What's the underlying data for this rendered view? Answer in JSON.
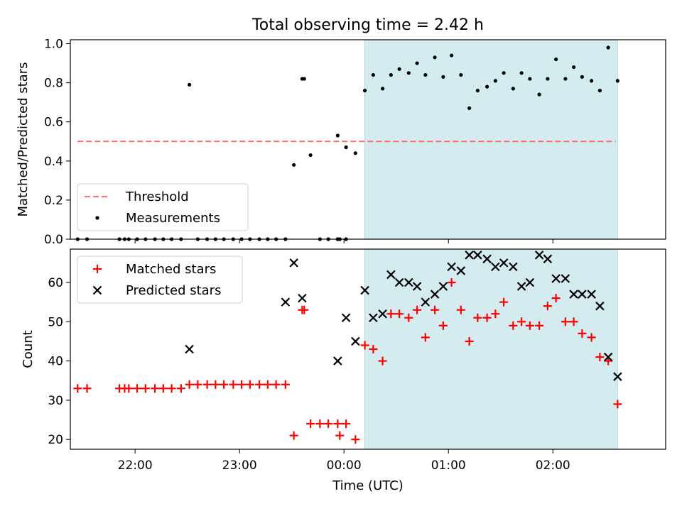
{
  "chart_data": {
    "type": "scatter",
    "title": "Total observing time = 2.42 h",
    "xlabel": "Time (UTC)",
    "x_range_hours": [
      -2.62,
      3.08
    ],
    "x_tick_hours": [
      -2,
      -1,
      0,
      1,
      2
    ],
    "xtick_labels": [
      "22:00",
      "23:00",
      "00:00",
      "01:00",
      "02:00"
    ],
    "shaded_region_hours": [
      0.2,
      2.62
    ],
    "shade_color": "#d4ebf0",
    "panels": [
      {
        "ylabel": "Matched/Predicted stars",
        "ylim": [
          0,
          1.02
        ],
        "ytick_values": [
          0,
          0.2,
          0.4,
          0.6,
          0.8,
          1.0
        ],
        "ytick_labels": [
          "0.0",
          "0.2",
          "0.4",
          "0.6",
          "0.8",
          "1.0"
        ],
        "threshold": {
          "name": "Threshold",
          "value": 0.5,
          "x_start": -2.55,
          "x_end": 2.6,
          "color": "#ff6f6f"
        },
        "series": [
          {
            "name": "Measurements",
            "marker": "dot",
            "color": "#000000",
            "points": [
              [
                -2.55,
                0
              ],
              [
                -2.46,
                0
              ],
              [
                -2.15,
                0
              ],
              [
                -2.1,
                0
              ],
              [
                -2.06,
                0
              ],
              [
                -1.98,
                0
              ],
              [
                -1.9,
                0
              ],
              [
                -1.81,
                0
              ],
              [
                -1.73,
                0
              ],
              [
                -1.65,
                0
              ],
              [
                -1.56,
                0
              ],
              [
                -1.48,
                0.79
              ],
              [
                -1.4,
                0
              ],
              [
                -1.31,
                0
              ],
              [
                -1.23,
                0
              ],
              [
                -1.15,
                0
              ],
              [
                -1.06,
                0
              ],
              [
                -0.98,
                0
              ],
              [
                -0.9,
                0
              ],
              [
                -0.81,
                0
              ],
              [
                -0.73,
                0
              ],
              [
                -0.65,
                0
              ],
              [
                -0.56,
                0
              ],
              [
                -0.48,
                0.38
              ],
              [
                -0.4,
                0.82
              ],
              [
                -0.38,
                0.82
              ],
              [
                -0.32,
                0.43
              ],
              [
                -0.23,
                0
              ],
              [
                -0.15,
                0
              ],
              [
                -0.06,
                0
              ],
              [
                -0.04,
                0
              ],
              [
                -0.06,
                0
              ],
              [
                0.02,
                0
              ],
              [
                -0.06,
                0.53
              ],
              [
                0.02,
                0.47
              ],
              [
                0.11,
                0.44
              ],
              [
                0.2,
                0.76
              ],
              [
                0.28,
                0.84
              ],
              [
                0.37,
                0.77
              ],
              [
                0.45,
                0.84
              ],
              [
                0.53,
                0.87
              ],
              [
                0.62,
                0.85
              ],
              [
                0.7,
                0.9
              ],
              [
                0.78,
                0.84
              ],
              [
                0.87,
                0.93
              ],
              [
                0.95,
                0.83
              ],
              [
                1.03,
                0.94
              ],
              [
                1.12,
                0.84
              ],
              [
                1.2,
                0.67
              ],
              [
                1.28,
                0.76
              ],
              [
                1.37,
                0.78
              ],
              [
                1.45,
                0.81
              ],
              [
                1.53,
                0.85
              ],
              [
                1.62,
                0.77
              ],
              [
                1.7,
                0.85
              ],
              [
                1.78,
                0.82
              ],
              [
                1.87,
                0.74
              ],
              [
                1.95,
                0.82
              ],
              [
                2.03,
                0.92
              ],
              [
                2.12,
                0.82
              ],
              [
                2.2,
                0.88
              ],
              [
                2.28,
                0.83
              ],
              [
                2.37,
                0.81
              ],
              [
                2.45,
                0.76
              ],
              [
                2.53,
                0.98
              ],
              [
                2.62,
                0.81
              ]
            ]
          }
        ],
        "legend": {
          "placement": "lower-left",
          "items": [
            "Threshold",
            "Measurements"
          ]
        }
      },
      {
        "ylabel": "Count",
        "ylim": [
          17.5,
          68.5
        ],
        "ytick_values": [
          20,
          30,
          40,
          50,
          60
        ],
        "ytick_labels": [
          "20",
          "30",
          "40",
          "50",
          "60"
        ],
        "series": [
          {
            "name": "Matched stars",
            "marker": "plus",
            "color": "#ff0000",
            "points": [
              [
                -2.55,
                33
              ],
              [
                -2.46,
                33
              ],
              [
                -2.15,
                33
              ],
              [
                -2.1,
                33
              ],
              [
                -2.06,
                33
              ],
              [
                -1.98,
                33
              ],
              [
                -1.9,
                33
              ],
              [
                -1.81,
                33
              ],
              [
                -1.73,
                33
              ],
              [
                -1.65,
                33
              ],
              [
                -1.56,
                33
              ],
              [
                -1.48,
                34
              ],
              [
                -1.4,
                34
              ],
              [
                -1.31,
                34
              ],
              [
                -1.23,
                34
              ],
              [
                -1.15,
                34
              ],
              [
                -1.06,
                34
              ],
              [
                -0.98,
                34
              ],
              [
                -0.9,
                34
              ],
              [
                -0.81,
                34
              ],
              [
                -0.73,
                34
              ],
              [
                -0.65,
                34
              ],
              [
                -0.56,
                34
              ],
              [
                -0.48,
                21
              ],
              [
                -0.4,
                53
              ],
              [
                -0.38,
                53
              ],
              [
                -0.32,
                24
              ],
              [
                -0.23,
                24
              ],
              [
                -0.15,
                24
              ],
              [
                -0.06,
                24
              ],
              [
                -0.04,
                21
              ],
              [
                0.02,
                24
              ],
              [
                0.11,
                20
              ],
              [
                0.2,
                44
              ],
              [
                0.28,
                43
              ],
              [
                0.37,
                40
              ],
              [
                0.45,
                52
              ],
              [
                0.53,
                52
              ],
              [
                0.62,
                51
              ],
              [
                0.7,
                53
              ],
              [
                0.78,
                46
              ],
              [
                0.87,
                53
              ],
              [
                0.95,
                49
              ],
              [
                1.03,
                60
              ],
              [
                1.12,
                53
              ],
              [
                1.2,
                45
              ],
              [
                1.28,
                51
              ],
              [
                1.37,
                51
              ],
              [
                1.45,
                52
              ],
              [
                1.53,
                55
              ],
              [
                1.62,
                49
              ],
              [
                1.7,
                50
              ],
              [
                1.78,
                49
              ],
              [
                1.87,
                49
              ],
              [
                1.95,
                54
              ],
              [
                2.03,
                56
              ],
              [
                2.12,
                50
              ],
              [
                2.2,
                50
              ],
              [
                2.28,
                47
              ],
              [
                2.37,
                46
              ],
              [
                2.45,
                41
              ],
              [
                2.53,
                40
              ],
              [
                2.62,
                29
              ]
            ]
          },
          {
            "name": "Predicted stars",
            "marker": "x",
            "color": "#000000",
            "points": [
              [
                -1.48,
                43
              ],
              [
                -0.56,
                55
              ],
              [
                -0.48,
                65
              ],
              [
                -0.4,
                56
              ],
              [
                -0.06,
                40
              ],
              [
                0.02,
                51
              ],
              [
                0.11,
                45
              ],
              [
                0.2,
                58
              ],
              [
                0.28,
                51
              ],
              [
                0.37,
                52
              ],
              [
                0.45,
                62
              ],
              [
                0.53,
                60
              ],
              [
                0.62,
                60
              ],
              [
                0.7,
                59
              ],
              [
                0.78,
                55
              ],
              [
                0.87,
                57
              ],
              [
                0.95,
                59
              ],
              [
                1.03,
                64
              ],
              [
                1.12,
                63
              ],
              [
                1.2,
                67
              ],
              [
                1.28,
                67
              ],
              [
                1.37,
                66
              ],
              [
                1.45,
                64
              ],
              [
                1.53,
                65
              ],
              [
                1.62,
                64
              ],
              [
                1.7,
                59
              ],
              [
                1.78,
                60
              ],
              [
                1.87,
                67
              ],
              [
                1.95,
                66
              ],
              [
                2.03,
                61
              ],
              [
                2.12,
                61
              ],
              [
                2.2,
                57
              ],
              [
                2.28,
                57
              ],
              [
                2.37,
                57
              ],
              [
                2.45,
                54
              ],
              [
                2.53,
                41
              ],
              [
                2.62,
                36
              ]
            ]
          }
        ],
        "legend": {
          "placement": "top-left",
          "items": [
            "Matched stars",
            "Predicted stars"
          ]
        }
      }
    ]
  }
}
